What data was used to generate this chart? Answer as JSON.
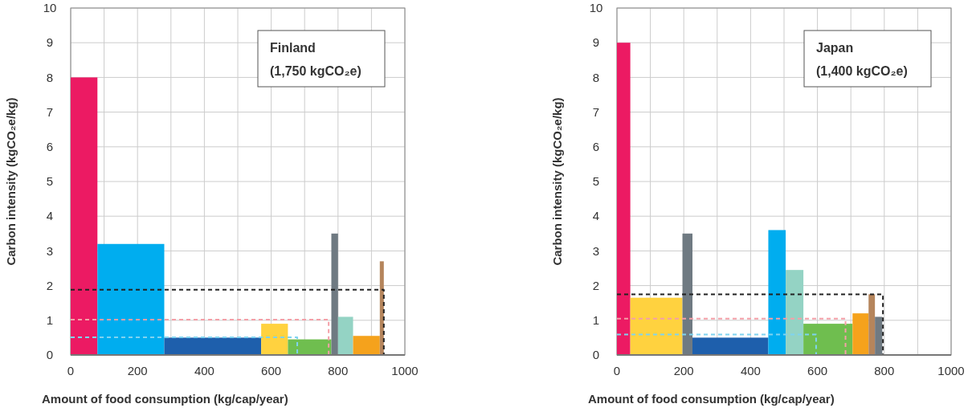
{
  "chart_data": [
    {
      "type": "histogram",
      "title": "Finland",
      "subtitle": "(1,750 kgCO₂e)",
      "xlabel": "Amount of food consumption (kg/cap/year)",
      "ylabel": "Carbon intensity (kgCO₂e/kg)",
      "bins": [
        0,
        80,
        280,
        570,
        650,
        780,
        800,
        845,
        925,
        937
      ],
      "values": [
        8,
        3.2,
        0.5,
        0.9,
        0.45,
        3.5,
        1.1,
        0.55,
        2.7
      ],
      "colors": [
        "#ec1a63",
        "#00adef",
        "#1e5fac",
        "#ffd23f",
        "#6fbe4f",
        "#6f7a82",
        "#94d3c4",
        "#f5a21c",
        "#b5855c"
      ],
      "series": [
        {
          "type": "line",
          "color": "#222222",
          "line_style": "dashed",
          "x": [
            0,
            937,
            937
          ],
          "values": [
            1.88,
            1.88,
            0
          ]
        },
        {
          "type": "line",
          "color": "#f4a0a8",
          "line_style": "dashed",
          "x": [
            0,
            772,
            772
          ],
          "values": [
            1.02,
            1.02,
            0
          ]
        },
        {
          "type": "line",
          "color": "#7fd3f0",
          "line_style": "dashed",
          "x": [
            0,
            678,
            678
          ],
          "values": [
            0.51,
            0.51,
            0
          ]
        }
      ],
      "xlim": [
        0,
        1000
      ],
      "xticks": [
        0,
        {
          "value": 100,
          "label": null
        },
        200,
        {
          "value": 300,
          "label": null
        },
        400,
        {
          "value": 500,
          "label": null
        },
        600,
        {
          "value": 700,
          "label": null
        },
        800,
        {
          "value": 900,
          "label": null
        },
        1000
      ],
      "ylim": [
        0,
        10
      ],
      "yticks": [
        0,
        1,
        2,
        3,
        4,
        5,
        6,
        7,
        8,
        9,
        10
      ],
      "grid": true
    },
    {
      "type": "histogram",
      "title": "Japan",
      "subtitle": "(1,400 kgCO₂e)",
      "xlabel": "Amount of food consumption (kg/cap/year)",
      "ylabel": "Carbon intensity (kgCO₂e/kg)",
      "bins": [
        0,
        40,
        196,
        226,
        453,
        505,
        558,
        705,
        753,
        772,
        794
      ],
      "values": [
        9,
        1.65,
        3.5,
        0.5,
        3.6,
        2.45,
        0.9,
        1.2,
        1.75,
        1.1
      ],
      "colors": [
        "#ec1a63",
        "#ffd23f",
        "#6f7a82",
        "#1e5fac",
        "#00adef",
        "#94d3c4",
        "#6fbe4f",
        "#f5a21c",
        "#b5855c",
        "#6f7a82"
      ],
      "series": [
        {
          "type": "line",
          "color": "#222222",
          "line_style": "dashed",
          "x": [
            0,
            796,
            796
          ],
          "values": [
            1.75,
            1.75,
            0
          ]
        },
        {
          "type": "line",
          "color": "#f4a0a8",
          "line_style": "dashed",
          "x": [
            0,
            684,
            684
          ],
          "values": [
            1.05,
            1.05,
            0
          ]
        },
        {
          "type": "line",
          "color": "#7fd3f0",
          "line_style": "dashed",
          "x": [
            0,
            596,
            596
          ],
          "values": [
            0.59,
            0.59,
            0
          ]
        }
      ],
      "xlim": [
        0,
        1000
      ],
      "xticks": [
        0,
        {
          "value": 100,
          "label": null
        },
        200,
        {
          "value": 300,
          "label": null
        },
        400,
        {
          "value": 500,
          "label": null
        },
        600,
        {
          "value": 700,
          "label": null
        },
        800,
        {
          "value": 900,
          "label": null
        },
        1000
      ],
      "ylim": [
        0,
        10
      ],
      "yticks": [
        0,
        1,
        2,
        3,
        4,
        5,
        6,
        7,
        8,
        9,
        10
      ],
      "grid": true
    }
  ]
}
